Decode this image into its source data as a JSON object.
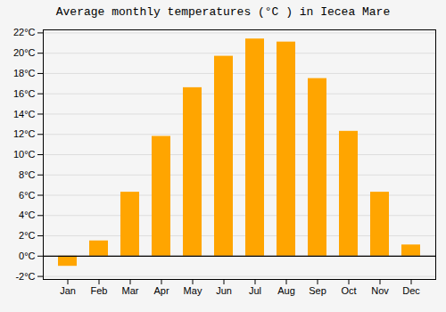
{
  "chart_data": {
    "type": "bar",
    "title": "Average monthly temperatures (°C ) in Iecea Mare",
    "categories": [
      "Jan",
      "Feb",
      "Mar",
      "Apr",
      "May",
      "Jun",
      "Jul",
      "Aug",
      "Sep",
      "Oct",
      "Nov",
      "Dec"
    ],
    "values": [
      -1.0,
      1.5,
      6.3,
      11.8,
      16.6,
      19.7,
      21.4,
      21.1,
      17.5,
      12.3,
      6.3,
      1.1
    ],
    "color": "#FFA500",
    "ylim": [
      -2.3,
      22.3
    ],
    "yticks": [
      {
        "value": -2,
        "label": "-2°C"
      },
      {
        "value": 0,
        "label": "0°C"
      },
      {
        "value": 2,
        "label": "2°C"
      },
      {
        "value": 4,
        "label": "4°C"
      },
      {
        "value": 6,
        "label": "6°C"
      },
      {
        "value": 8,
        "label": "8°C"
      },
      {
        "value": 10,
        "label": "10°C"
      },
      {
        "value": 12,
        "label": "12°C"
      },
      {
        "value": 14,
        "label": "14°C"
      },
      {
        "value": 16,
        "label": "16°C"
      },
      {
        "value": 18,
        "label": "18°C"
      },
      {
        "value": 20,
        "label": "20°C"
      },
      {
        "value": 22,
        "label": "22°C"
      }
    ],
    "grid": true
  }
}
